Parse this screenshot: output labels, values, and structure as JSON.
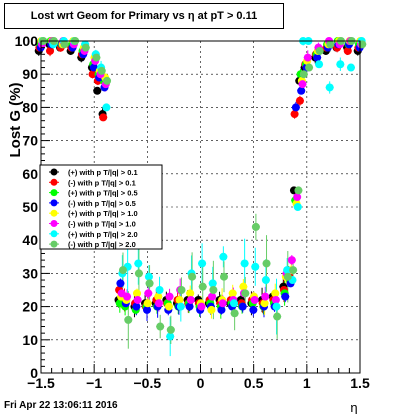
{
  "chart_data": {
    "type": "scatter",
    "title": "Lost wrt Geom for Primary vs   η at pT > 0.11",
    "xlabel": "η",
    "ylabel": "Lost G (%)",
    "xlim": [
      -1.5,
      1.5
    ],
    "ylim": [
      0,
      100
    ],
    "x_ticks": [
      "−1.5",
      "−1",
      "−0.5",
      "0",
      "0.5",
      "1",
      "1.5"
    ],
    "y_ticks": [
      "0",
      "10",
      "20",
      "30",
      "40",
      "50",
      "60",
      "70",
      "80",
      "90",
      "100"
    ],
    "grid": true,
    "legend_position": "left-middle",
    "series": [
      {
        "name": "(+) with p T/|q| > 0.1",
        "color": "#000000",
        "points": [
          [
            -1.5,
            97
          ],
          [
            -1.4,
            99
          ],
          [
            -1.3,
            98
          ],
          [
            -1.2,
            97
          ],
          [
            -1.1,
            95
          ],
          [
            -1.0,
            92
          ],
          [
            -0.95,
            85
          ],
          [
            -0.9,
            78
          ],
          [
            -0.8,
            50
          ],
          [
            -0.75,
            22
          ],
          [
            -0.7,
            21
          ],
          [
            -0.6,
            20
          ],
          [
            -0.5,
            21
          ],
          [
            -0.4,
            21
          ],
          [
            -0.3,
            22
          ],
          [
            -0.2,
            21
          ],
          [
            -0.1,
            22
          ],
          [
            0.0,
            22
          ],
          [
            0.1,
            21
          ],
          [
            0.2,
            22
          ],
          [
            0.3,
            21
          ],
          [
            0.4,
            22
          ],
          [
            0.5,
            21
          ],
          [
            0.6,
            22
          ],
          [
            0.7,
            23
          ],
          [
            0.8,
            26
          ],
          [
            0.85,
            30
          ],
          [
            0.9,
            55
          ],
          [
            0.95,
            88
          ],
          [
            1.0,
            92
          ],
          [
            1.1,
            95
          ],
          [
            1.2,
            97
          ],
          [
            1.3,
            98
          ],
          [
            1.4,
            98
          ],
          [
            1.5,
            97
          ]
        ]
      },
      {
        "name": "(-) with p T/|q| > 0.1",
        "color": "#ff0000",
        "points": [
          [
            -1.5,
            98
          ],
          [
            -1.4,
            97
          ],
          [
            -1.3,
            98
          ],
          [
            -1.2,
            98
          ],
          [
            -1.1,
            96
          ],
          [
            -1.0,
            90
          ],
          [
            -0.95,
            88
          ],
          [
            -0.9,
            77
          ],
          [
            -0.8,
            45
          ],
          [
            -0.75,
            25
          ],
          [
            -0.7,
            22
          ],
          [
            -0.6,
            21
          ],
          [
            -0.5,
            20
          ],
          [
            -0.4,
            22
          ],
          [
            -0.3,
            21
          ],
          [
            -0.2,
            22
          ],
          [
            -0.1,
            21
          ],
          [
            0.0,
            21
          ],
          [
            0.1,
            22
          ],
          [
            0.2,
            21
          ],
          [
            0.3,
            22
          ],
          [
            0.4,
            21
          ],
          [
            0.5,
            22
          ],
          [
            0.6,
            21
          ],
          [
            0.7,
            22
          ],
          [
            0.8,
            25
          ],
          [
            0.85,
            29
          ],
          [
            0.9,
            78
          ],
          [
            0.95,
            82
          ],
          [
            1.0,
            93
          ],
          [
            1.1,
            96
          ],
          [
            1.2,
            98
          ],
          [
            1.3,
            98
          ],
          [
            1.4,
            97
          ],
          [
            1.5,
            98
          ]
        ]
      },
      {
        "name": "(+) with p T/|q| > 0.5",
        "color": "#00ff00",
        "points": [
          [
            -1.5,
            99
          ],
          [
            -1.4,
            100
          ],
          [
            -1.3,
            99
          ],
          [
            -1.2,
            99
          ],
          [
            -1.1,
            97
          ],
          [
            -1.0,
            93
          ],
          [
            -0.95,
            90
          ],
          [
            -0.9,
            88
          ],
          [
            -0.8,
            55
          ],
          [
            -0.75,
            21
          ],
          [
            -0.7,
            20
          ],
          [
            -0.6,
            19
          ],
          [
            -0.5,
            20
          ],
          [
            -0.4,
            20
          ],
          [
            -0.3,
            21
          ],
          [
            -0.2,
            20
          ],
          [
            -0.1,
            21
          ],
          [
            0.0,
            20
          ],
          [
            0.1,
            21
          ],
          [
            0.2,
            20
          ],
          [
            0.3,
            21
          ],
          [
            0.4,
            20
          ],
          [
            0.5,
            21
          ],
          [
            0.6,
            20
          ],
          [
            0.7,
            21
          ],
          [
            0.8,
            24
          ],
          [
            0.85,
            28
          ],
          [
            0.9,
            52
          ],
          [
            0.95,
            90
          ],
          [
            1.0,
            93
          ],
          [
            1.1,
            96
          ],
          [
            1.2,
            99
          ],
          [
            1.3,
            100
          ],
          [
            1.4,
            99
          ],
          [
            1.5,
            99
          ]
        ]
      },
      {
        "name": "(-) with p T/|q| > 0.5",
        "color": "#0000ff",
        "points": [
          [
            -1.5,
            98
          ],
          [
            -1.4,
            99
          ],
          [
            -1.3,
            99
          ],
          [
            -1.2,
            98
          ],
          [
            -1.1,
            96
          ],
          [
            -1.0,
            92
          ],
          [
            -0.95,
            89
          ],
          [
            -0.9,
            86
          ],
          [
            -0.8,
            40
          ],
          [
            -0.75,
            27
          ],
          [
            -0.7,
            21
          ],
          [
            -0.6,
            20
          ],
          [
            -0.5,
            19
          ],
          [
            -0.4,
            20
          ],
          [
            -0.3,
            19
          ],
          [
            -0.2,
            20
          ],
          [
            -0.1,
            20
          ],
          [
            0.0,
            19
          ],
          [
            0.1,
            20
          ],
          [
            0.2,
            19
          ],
          [
            0.3,
            20
          ],
          [
            0.4,
            20
          ],
          [
            0.5,
            19
          ],
          [
            0.6,
            20
          ],
          [
            0.7,
            20
          ],
          [
            0.8,
            23
          ],
          [
            0.85,
            27
          ],
          [
            0.9,
            80
          ],
          [
            0.95,
            85
          ],
          [
            1.0,
            92
          ],
          [
            1.1,
            95
          ],
          [
            1.2,
            98
          ],
          [
            1.3,
            99
          ],
          [
            1.4,
            99
          ],
          [
            1.5,
            98
          ]
        ]
      },
      {
        "name": "(+) with p T/|q| > 1.0",
        "color": "#ffff00",
        "points": [
          [
            -1.5,
            100
          ],
          [
            -1.4,
            100
          ],
          [
            -1.3,
            99
          ],
          [
            -1.2,
            100
          ],
          [
            -1.1,
            98
          ],
          [
            -1.0,
            95
          ],
          [
            -0.95,
            91
          ],
          [
            -0.9,
            89
          ],
          [
            -0.8,
            47
          ],
          [
            -0.75,
            23
          ],
          [
            -0.7,
            22
          ],
          [
            -0.6,
            24
          ],
          [
            -0.5,
            21
          ],
          [
            -0.4,
            23
          ],
          [
            -0.3,
            20
          ],
          [
            -0.2,
            22
          ],
          [
            -0.1,
            24
          ],
          [
            0.0,
            21
          ],
          [
            0.1,
            19
          ],
          [
            0.2,
            22
          ],
          [
            0.3,
            24
          ],
          [
            0.4,
            26
          ],
          [
            0.5,
            23
          ],
          [
            0.6,
            21
          ],
          [
            0.7,
            24
          ],
          [
            0.8,
            29
          ],
          [
            0.85,
            31
          ],
          [
            0.9,
            51
          ],
          [
            0.95,
            88
          ],
          [
            1.0,
            94
          ],
          [
            1.1,
            97
          ],
          [
            1.2,
            99
          ],
          [
            1.3,
            100
          ],
          [
            1.4,
            100
          ],
          [
            1.5,
            100
          ]
        ]
      },
      {
        "name": "(-) with p T/|q| > 1.0",
        "color": "#ff00ff",
        "points": [
          [
            -1.5,
            99
          ],
          [
            -1.4,
            100
          ],
          [
            -1.3,
            100
          ],
          [
            -1.2,
            99
          ],
          [
            -1.1,
            97
          ],
          [
            -1.0,
            94
          ],
          [
            -0.95,
            90
          ],
          [
            -0.9,
            87
          ],
          [
            -0.8,
            43
          ],
          [
            -0.75,
            24
          ],
          [
            -0.7,
            23
          ],
          [
            -0.6,
            22
          ],
          [
            -0.5,
            24
          ],
          [
            -0.4,
            21
          ],
          [
            -0.3,
            23
          ],
          [
            -0.2,
            25
          ],
          [
            -0.1,
            22
          ],
          [
            0.0,
            20
          ],
          [
            0.1,
            23
          ],
          [
            0.2,
            21
          ],
          [
            0.3,
            22
          ],
          [
            0.4,
            24
          ],
          [
            0.5,
            22
          ],
          [
            0.6,
            23
          ],
          [
            0.7,
            22
          ],
          [
            0.8,
            30
          ],
          [
            0.85,
            34
          ],
          [
            0.9,
            53
          ],
          [
            0.95,
            87
          ],
          [
            1.0,
            95
          ],
          [
            1.1,
            98
          ],
          [
            1.2,
            100
          ],
          [
            1.3,
            99
          ],
          [
            1.4,
            100
          ],
          [
            1.5,
            99
          ]
        ]
      },
      {
        "name": "(+) with p T/|q| > 2.0",
        "color": "#00ffff",
        "points": [
          [
            -1.5,
            100
          ],
          [
            -1.4,
            99
          ],
          [
            -1.3,
            100
          ],
          [
            -1.2,
            100
          ],
          [
            -1.1,
            99
          ],
          [
            -1.0,
            96
          ],
          [
            -0.95,
            92
          ],
          [
            -0.9,
            80
          ],
          [
            -0.8,
            57
          ],
          [
            -0.75,
            30
          ],
          [
            -0.7,
            32
          ],
          [
            -0.6,
            33
          ],
          [
            -0.5,
            29
          ],
          [
            -0.4,
            25
          ],
          [
            -0.3,
            11
          ],
          [
            -0.2,
            20
          ],
          [
            -0.1,
            30
          ],
          [
            0.0,
            33
          ],
          [
            0.1,
            27
          ],
          [
            0.2,
            35
          ],
          [
            0.3,
            21
          ],
          [
            0.4,
            33
          ],
          [
            0.5,
            32
          ],
          [
            0.6,
            28
          ],
          [
            0.7,
            20
          ],
          [
            0.8,
            31
          ],
          [
            0.85,
            28
          ],
          [
            0.9,
            50
          ],
          [
            0.95,
            100
          ],
          [
            1.0,
            100
          ],
          [
            1.1,
            93
          ],
          [
            1.2,
            86
          ],
          [
            1.3,
            93
          ],
          [
            1.4,
            92
          ],
          [
            1.5,
            100
          ]
        ]
      },
      {
        "name": "(-) with p T/|q| > 2.0",
        "color": "#66cc66",
        "points": [
          [
            -1.5,
            100
          ],
          [
            -1.4,
            100
          ],
          [
            -1.3,
            99
          ],
          [
            -1.2,
            100
          ],
          [
            -1.1,
            98
          ],
          [
            -1.0,
            95
          ],
          [
            -0.95,
            91
          ],
          [
            -0.9,
            88
          ],
          [
            -0.8,
            52
          ],
          [
            -0.75,
            31
          ],
          [
            -0.7,
            16
          ],
          [
            -0.6,
            30
          ],
          [
            -0.5,
            27
          ],
          [
            -0.4,
            14
          ],
          [
            -0.3,
            13
          ],
          [
            -0.2,
            25
          ],
          [
            -0.1,
            29
          ],
          [
            0.0,
            26
          ],
          [
            0.1,
            25
          ],
          [
            0.2,
            29
          ],
          [
            0.3,
            18
          ],
          [
            0.4,
            24
          ],
          [
            0.5,
            44
          ],
          [
            0.6,
            33
          ],
          [
            0.7,
            17
          ],
          [
            0.8,
            29
          ],
          [
            0.85,
            31
          ],
          [
            0.9,
            55
          ],
          [
            0.95,
            90
          ],
          [
            1.0,
            92
          ],
          [
            1.1,
            97
          ],
          [
            1.2,
            99
          ],
          [
            1.3,
            100
          ],
          [
            1.4,
            100
          ],
          [
            1.5,
            99
          ]
        ]
      }
    ]
  },
  "footer": {
    "timestamp": "Fri Apr 22 13:06:11 2016"
  }
}
